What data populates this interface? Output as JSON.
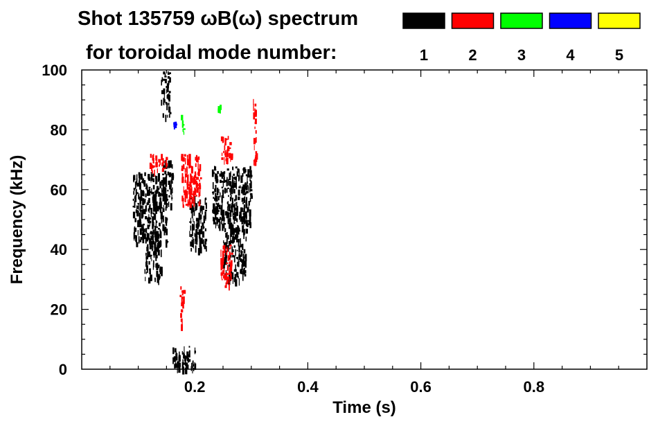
{
  "chart_data": {
    "type": "heatmap",
    "title": "Shot 135759 ωB(ω) spectrum",
    "subtitle": "for toroidal mode number:",
    "xlabel": "Time (s)",
    "ylabel": "Frequency (kHz)",
    "xlim": [
      0.0,
      1.0
    ],
    "ylim": [
      0,
      100
    ],
    "xticks": [
      0.2,
      0.4,
      0.6,
      0.8
    ],
    "xtick_labels": [
      "0.2",
      "0.4",
      "0.6",
      "0.8"
    ],
    "yticks": [
      0,
      20,
      40,
      60,
      80,
      100
    ],
    "ytick_labels": [
      "0",
      "20",
      "40",
      "60",
      "80",
      "100"
    ],
    "grid": false,
    "legend_position": "top-right",
    "modes": [
      {
        "label": "1",
        "color": "#000000"
      },
      {
        "label": "2",
        "color": "#ff0000"
      },
      {
        "label": "3",
        "color": "#00ff00"
      },
      {
        "label": "4",
        "color": "#0000ff"
      },
      {
        "label": "5",
        "color": "#ffff00"
      }
    ],
    "regions": [
      {
        "mode": "1",
        "t": [
          0.09,
          0.15
        ],
        "f": [
          42,
          66
        ]
      },
      {
        "mode": "1",
        "t": [
          0.11,
          0.14
        ],
        "f": [
          30,
          46
        ]
      },
      {
        "mode": "1",
        "t": [
          0.14,
          0.16
        ],
        "f": [
          55,
          70
        ]
      },
      {
        "mode": "1",
        "t": [
          0.16,
          0.2
        ],
        "f": [
          0,
          8
        ]
      },
      {
        "mode": "1",
        "t": [
          0.23,
          0.3
        ],
        "f": [
          48,
          68
        ]
      },
      {
        "mode": "1",
        "t": [
          0.25,
          0.29
        ],
        "f": [
          30,
          48
        ]
      },
      {
        "mode": "1",
        "t": [
          0.19,
          0.22
        ],
        "f": [
          40,
          58
        ]
      },
      {
        "mode": "1",
        "t": [
          0.14,
          0.155
        ],
        "f": [
          85,
          100
        ]
      },
      {
        "mode": "2",
        "t": [
          0.12,
          0.15
        ],
        "f": [
          66,
          72
        ]
      },
      {
        "mode": "2",
        "t": [
          0.175,
          0.21
        ],
        "f": [
          55,
          72
        ]
      },
      {
        "mode": "2",
        "t": [
          0.245,
          0.265
        ],
        "f": [
          70,
          78
        ]
      },
      {
        "mode": "2",
        "t": [
          0.245,
          0.265
        ],
        "f": [
          28,
          42
        ]
      },
      {
        "mode": "2",
        "t": [
          0.303,
          0.308
        ],
        "f": [
          68,
          92
        ]
      },
      {
        "mode": "2",
        "t": [
          0.173,
          0.18
        ],
        "f": [
          15,
          28
        ]
      },
      {
        "mode": "3",
        "t": [
          0.175,
          0.18
        ],
        "f": [
          78,
          85
        ]
      },
      {
        "mode": "3",
        "t": [
          0.24,
          0.245
        ],
        "f": [
          86,
          89
        ]
      },
      {
        "mode": "4",
        "t": [
          0.162,
          0.165
        ],
        "f": [
          81,
          83
        ]
      }
    ]
  }
}
